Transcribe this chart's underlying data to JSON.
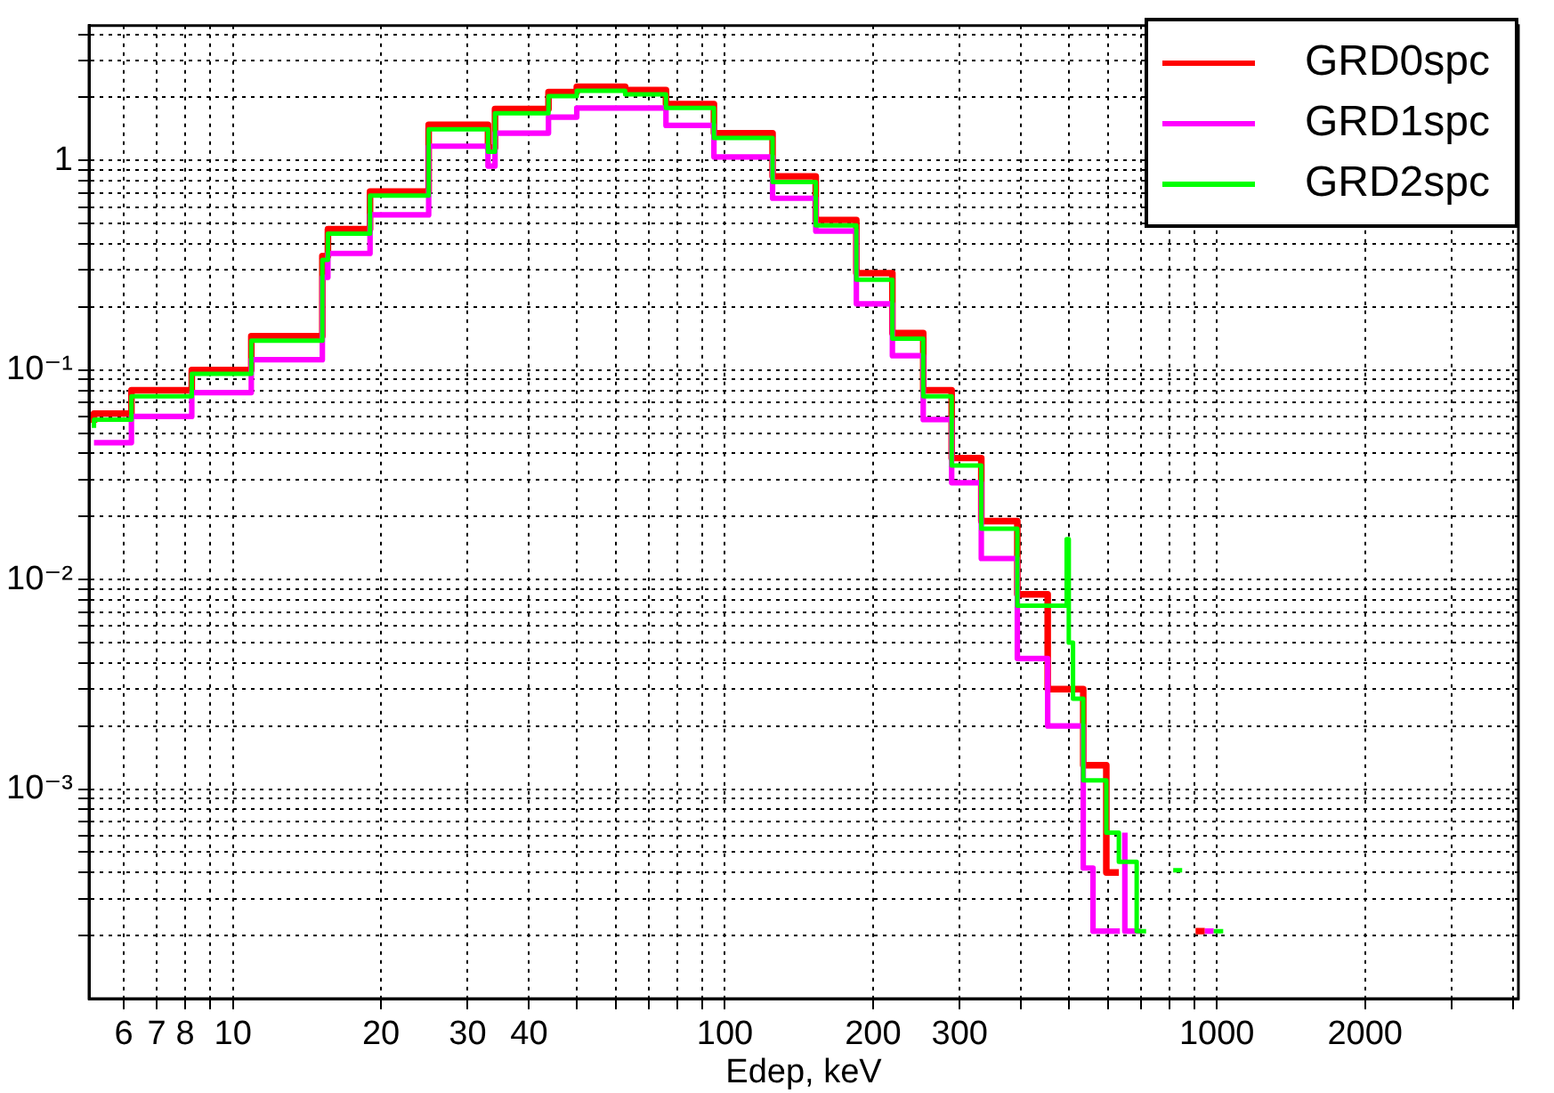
{
  "chart_data": {
    "type": "step",
    "xlabel": "Edep, keV",
    "log": "xy",
    "grid": true,
    "legend": "top right",
    "marker": "none",
    "line_style": "solid",
    "xlim": [
      5.1,
      4100
    ],
    "ylim": [
      0.0001,
      4.4
    ],
    "xticks": [
      6,
      7,
      8,
      {
        "value": 9,
        "label": null
      },
      10,
      20,
      30,
      40,
      {
        "value": 50,
        "label": null
      },
      {
        "value": 60,
        "label": null
      },
      {
        "value": 70,
        "label": null
      },
      {
        "value": 80,
        "label": null
      },
      {
        "value": 90,
        "label": null
      },
      100,
      200,
      300,
      {
        "value": 400,
        "label": null
      },
      {
        "value": 500,
        "label": null
      },
      {
        "value": 600,
        "label": null
      },
      {
        "value": 700,
        "label": null
      },
      {
        "value": 800,
        "label": null
      },
      {
        "value": 900,
        "label": null
      },
      1000,
      2000,
      {
        "value": 3000,
        "label": null
      },
      {
        "value": 4000,
        "label": null
      }
    ],
    "yticks": [
      {
        "value": 0.0002,
        "label": null
      },
      {
        "value": 0.0003,
        "label": null
      },
      {
        "value": 0.0004,
        "label": null
      },
      {
        "value": 0.0005,
        "label": null
      },
      {
        "value": 0.0006,
        "label": null
      },
      {
        "value": 0.0007,
        "label": null
      },
      {
        "value": 0.0008,
        "label": null
      },
      {
        "value": 0.0009,
        "label": null
      },
      {
        "value": 0.001,
        "label": "10⁻³"
      },
      {
        "value": 0.002,
        "label": null
      },
      {
        "value": 0.003,
        "label": null
      },
      {
        "value": 0.004,
        "label": null
      },
      {
        "value": 0.005,
        "label": null
      },
      {
        "value": 0.006,
        "label": null
      },
      {
        "value": 0.007,
        "label": null
      },
      {
        "value": 0.008,
        "label": null
      },
      {
        "value": 0.009,
        "label": null
      },
      {
        "value": 0.01,
        "label": "10⁻²"
      },
      {
        "value": 0.02,
        "label": null
      },
      {
        "value": 0.03,
        "label": null
      },
      {
        "value": 0.04,
        "label": null
      },
      {
        "value": 0.05,
        "label": null
      },
      {
        "value": 0.06,
        "label": null
      },
      {
        "value": 0.07,
        "label": null
      },
      {
        "value": 0.08,
        "label": null
      },
      {
        "value": 0.09,
        "label": null
      },
      {
        "value": 0.1,
        "label": "10⁻¹"
      },
      {
        "value": 0.2,
        "label": null
      },
      {
        "value": 0.3,
        "label": null
      },
      {
        "value": 0.4,
        "label": null
      },
      {
        "value": 0.5,
        "label": null
      },
      {
        "value": 0.6,
        "label": null
      },
      {
        "value": 0.7,
        "label": null
      },
      {
        "value": 0.8,
        "label": null
      },
      {
        "value": 0.9,
        "label": null
      },
      1,
      {
        "value": 2,
        "label": null
      },
      {
        "value": 3,
        "label": null
      },
      {
        "value": 4,
        "label": null
      }
    ],
    "series": [
      {
        "name": "GRD0spc",
        "color": "#ff0000",
        "x": [
          5.22,
          6.22,
          8.25,
          10.9,
          15.2,
          15.6,
          19,
          25,
          33,
          34.1,
          43.8,
          50,
          62.7,
          75.9,
          95,
          125,
          153,
          185,
          219,
          253,
          289,
          332,
          393,
          453,
          535,
          596,
          615,
          632,
          640,
          905,
          945
        ],
        "values": [
          0.056,
          0.062,
          0.08,
          0.1,
          0.145,
          0.35,
          0.47,
          0.71,
          1.48,
          1.15,
          1.76,
          2.12,
          2.25,
          2.17,
          1.86,
          1.35,
          0.84,
          0.52,
          0.29,
          0.15,
          0.08,
          0.038,
          0.019,
          0.0085,
          0.003,
          0.0013,
          0.0004,
          0.0004,
          null,
          0.00021,
          0.00021
        ]
      },
      {
        "name": "GRD1spc",
        "color": "#ff00ff",
        "x": [
          5.22,
          6.22,
          8.25,
          10.9,
          15.2,
          15.6,
          19,
          25,
          33,
          34.1,
          43.8,
          50,
          62.7,
          75.9,
          95,
          125,
          153,
          185,
          219,
          253,
          289,
          332,
          393,
          453,
          535,
          560,
          605,
          635,
          640,
          650,
          680,
          700,
          705,
          945,
          985
        ],
        "values": [
          0.045,
          0.045,
          0.06,
          0.078,
          0.112,
          0.277,
          0.36,
          0.55,
          1.17,
          0.94,
          1.35,
          1.61,
          1.78,
          1.78,
          1.47,
          1.04,
          0.66,
          0.46,
          0.207,
          0.117,
          0.058,
          0.029,
          0.0126,
          0.0042,
          0.002,
          0.00042,
          0.00021,
          0.00021,
          null,
          0.00062,
          0.00021,
          0.00021,
          null,
          0.00021,
          0.00021
        ]
      },
      {
        "name": "GRD2spc",
        "color": "#00ff00",
        "x": [
          5.22,
          6.22,
          8.25,
          10.9,
          15.2,
          15.6,
          19,
          25,
          33,
          34.1,
          43.8,
          50,
          62.7,
          75.9,
          95,
          125,
          153,
          185,
          219,
          253,
          289,
          332,
          393,
          453,
          495,
          500,
          510,
          535,
          596,
          632,
          687,
          705,
          718,
          720,
          815,
          850,
          855,
          985,
          1030
        ],
        "values": [
          0.053,
          0.058,
          0.075,
          0.096,
          0.138,
          0.335,
          0.447,
          0.68,
          1.41,
          1.1,
          1.68,
          2.03,
          2.15,
          2.07,
          1.78,
          1.28,
          0.79,
          0.49,
          0.27,
          0.141,
          0.075,
          0.035,
          0.0175,
          0.0075,
          0.0075,
          0.0156,
          0.005,
          0.0027,
          0.0011,
          0.00062,
          0.00045,
          0.00021,
          0.00021,
          null,
          0.00041,
          0.00041,
          null,
          0.00021,
          0.00021
        ]
      }
    ]
  }
}
